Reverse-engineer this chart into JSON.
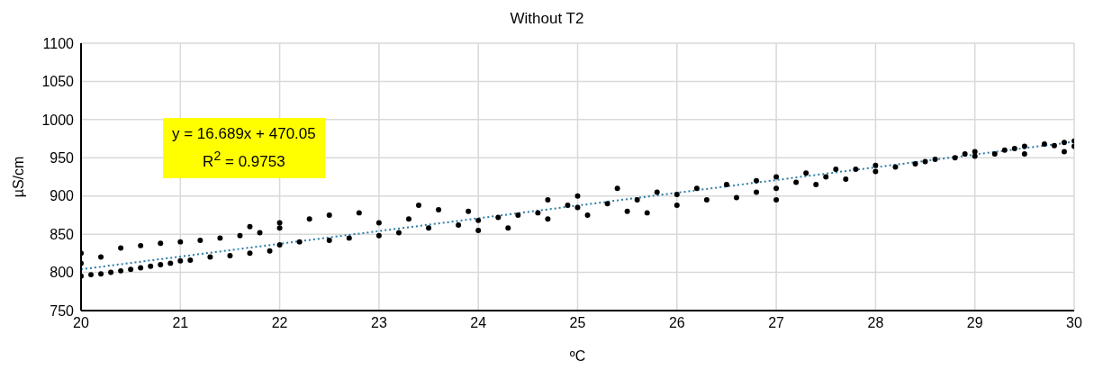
{
  "chart_data": {
    "type": "scatter",
    "title": "Without T2",
    "xlabel": "ºC",
    "ylabel": "µS/cm",
    "xlim": [
      20,
      30
    ],
    "xticks": [
      20,
      21,
      22,
      23,
      24,
      25,
      26,
      27,
      28,
      29,
      30
    ],
    "ylim": [
      750,
      1100
    ],
    "yticks": [
      750,
      800,
      850,
      900,
      950,
      1000,
      1050,
      1100
    ],
    "grid": true,
    "legend": false,
    "annotations": [
      "y = 16.689x + 470.05",
      "R$^{2}$ = 0.9753"
    ],
    "series": [
      {
        "color": "#000000",
        "marker": "circle",
        "x": [
          20.0,
          20.0,
          20.0,
          20.1,
          20.2,
          20.3,
          20.4,
          20.5,
          20.6,
          20.7,
          20.8,
          20.9,
          21.0,
          21.1,
          21.3,
          21.5,
          21.7,
          21.9,
          20.2,
          20.4,
          20.6,
          20.8,
          21.0,
          21.2,
          21.4,
          21.6,
          21.8,
          21.7,
          22.0,
          22.0,
          22.0,
          22.2,
          22.3,
          22.5,
          22.5,
          22.7,
          22.8,
          23.0,
          23.0,
          23.2,
          23.3,
          23.4,
          23.5,
          23.6,
          23.8,
          23.9,
          24.0,
          24.0,
          24.2,
          24.3,
          24.4,
          24.6,
          24.7,
          24.7,
          24.9,
          25.0,
          25.0,
          25.1,
          25.3,
          25.5,
          25.4,
          25.6,
          25.7,
          25.8,
          26.0,
          26.0,
          26.2,
          26.3,
          26.5,
          26.6,
          26.8,
          26.8,
          27.0,
          27.0,
          27.0,
          27.2,
          27.3,
          27.4,
          27.5,
          27.6,
          27.7,
          27.8,
          28.0,
          28.0,
          28.2,
          28.4,
          28.5,
          28.6,
          28.8,
          28.9,
          29.0,
          29.0,
          29.2,
          29.3,
          29.4,
          29.5,
          29.5,
          29.7,
          29.8,
          29.9,
          30.0,
          30.0,
          29.9
        ],
        "values": [
          795,
          825,
          812,
          797,
          798,
          800,
          802,
          804,
          806,
          808,
          810,
          812,
          815,
          816,
          820,
          822,
          825,
          828,
          820,
          832,
          835,
          838,
          840,
          842,
          845,
          848,
          852,
          860,
          836,
          858,
          865,
          840,
          870,
          842,
          875,
          845,
          878,
          848,
          865,
          852,
          870,
          888,
          858,
          882,
          862,
          880,
          868,
          855,
          872,
          858,
          875,
          878,
          895,
          870,
          888,
          885,
          900,
          875,
          890,
          880,
          910,
          895,
          878,
          905,
          902,
          888,
          910,
          895,
          915,
          898,
          920,
          905,
          910,
          895,
          925,
          918,
          930,
          915,
          925,
          935,
          922,
          935,
          932,
          940,
          938,
          942,
          945,
          948,
          950,
          955,
          952,
          958,
          955,
          960,
          962,
          965,
          955,
          968,
          966,
          970,
          972,
          965,
          958
        ]
      },
      {
        "type": "line",
        "color": "#2f7ca6",
        "line_style": "dotted",
        "marker": "none",
        "x": [
          20,
          30
        ],
        "values": [
          804,
          971
        ]
      }
    ]
  }
}
